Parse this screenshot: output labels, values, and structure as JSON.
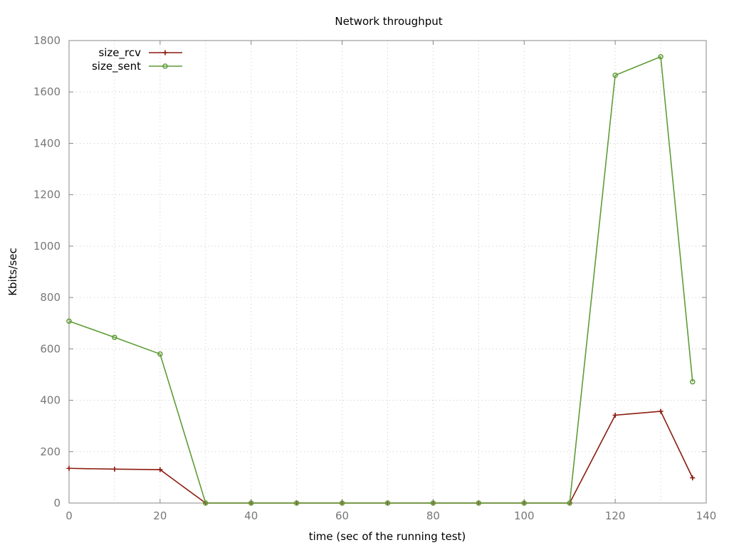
{
  "chart_data": {
    "type": "line",
    "title": "Network throughput",
    "xlabel": "time (sec of the running test)",
    "ylabel": "Kbits/sec",
    "xlim": [
      0,
      140
    ],
    "ylim": [
      0,
      1800
    ],
    "xticks": [
      0,
      20,
      40,
      60,
      80,
      100,
      120,
      140
    ],
    "yticks": [
      0,
      200,
      400,
      600,
      800,
      1000,
      1200,
      1400,
      1600,
      1800
    ],
    "x_minor_grid": [
      10,
      30,
      50,
      70,
      90,
      110,
      130
    ],
    "grid": true,
    "legend_position": "top-left",
    "x": [
      0,
      10,
      20,
      30,
      40,
      50,
      60,
      70,
      80,
      90,
      100,
      110,
      120,
      130,
      137
    ],
    "series": [
      {
        "name": "size_rcv",
        "color": "#8b1a0e",
        "marker": "plus",
        "values": [
          135,
          132,
          130,
          0,
          0,
          0,
          0,
          0,
          0,
          0,
          0,
          0,
          342,
          357,
          98
        ]
      },
      {
        "name": "size_sent",
        "color": "#5e9c36",
        "marker": "circle",
        "values": [
          708,
          645,
          580,
          0,
          0,
          0,
          0,
          0,
          0,
          0,
          0,
          0,
          1665,
          1737,
          472
        ]
      }
    ]
  }
}
